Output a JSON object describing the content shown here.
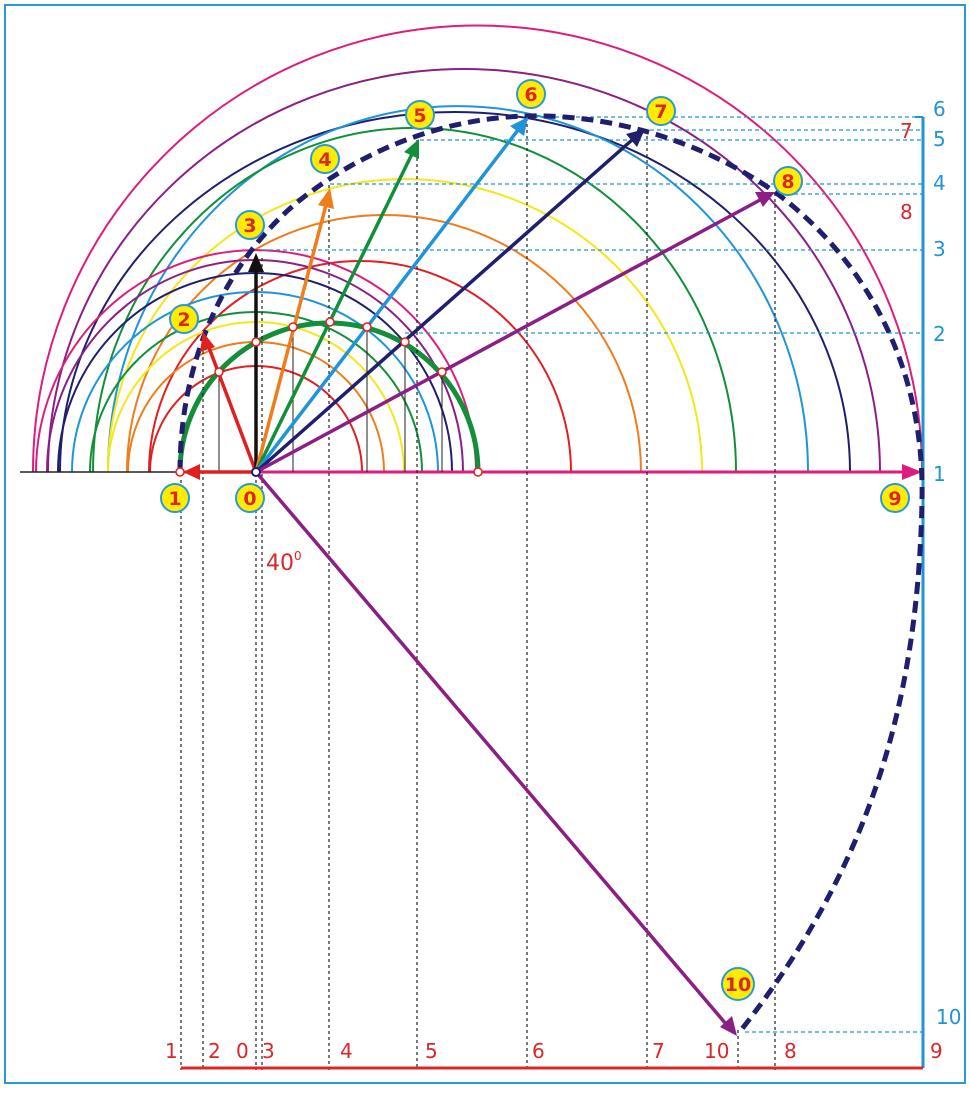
{
  "diagram": {
    "angle_label": "40",
    "angle_unit": "0",
    "point_markers": [
      "0",
      "1",
      "2",
      "3",
      "4",
      "5",
      "6",
      "7",
      "8",
      "9",
      "10"
    ],
    "bottom_labels": [
      "1",
      "2",
      "0",
      "3",
      "4",
      "5",
      "6",
      "7",
      "10",
      "8",
      "9"
    ],
    "right_labels_blue": [
      "6",
      "5",
      "4",
      "3",
      "2",
      "1",
      "10"
    ],
    "right_labels_red": [
      "7",
      "8"
    ]
  },
  "colors": {
    "frame": "#2a9ad6",
    "red": "#e02020",
    "orange": "#ee7d1c",
    "yellow": "#f3e81a",
    "green": "#138f3a",
    "light_blue": "#1f95d8",
    "navy": "#1f1f6e",
    "purple": "#8b1f85",
    "magenta": "#dc1d7d",
    "black": "#111111",
    "marker_fill": "#ffec00",
    "marker_stroke": "#2a9ad6",
    "label_red": "#d8282a",
    "label_blue": "#1f95d8"
  }
}
